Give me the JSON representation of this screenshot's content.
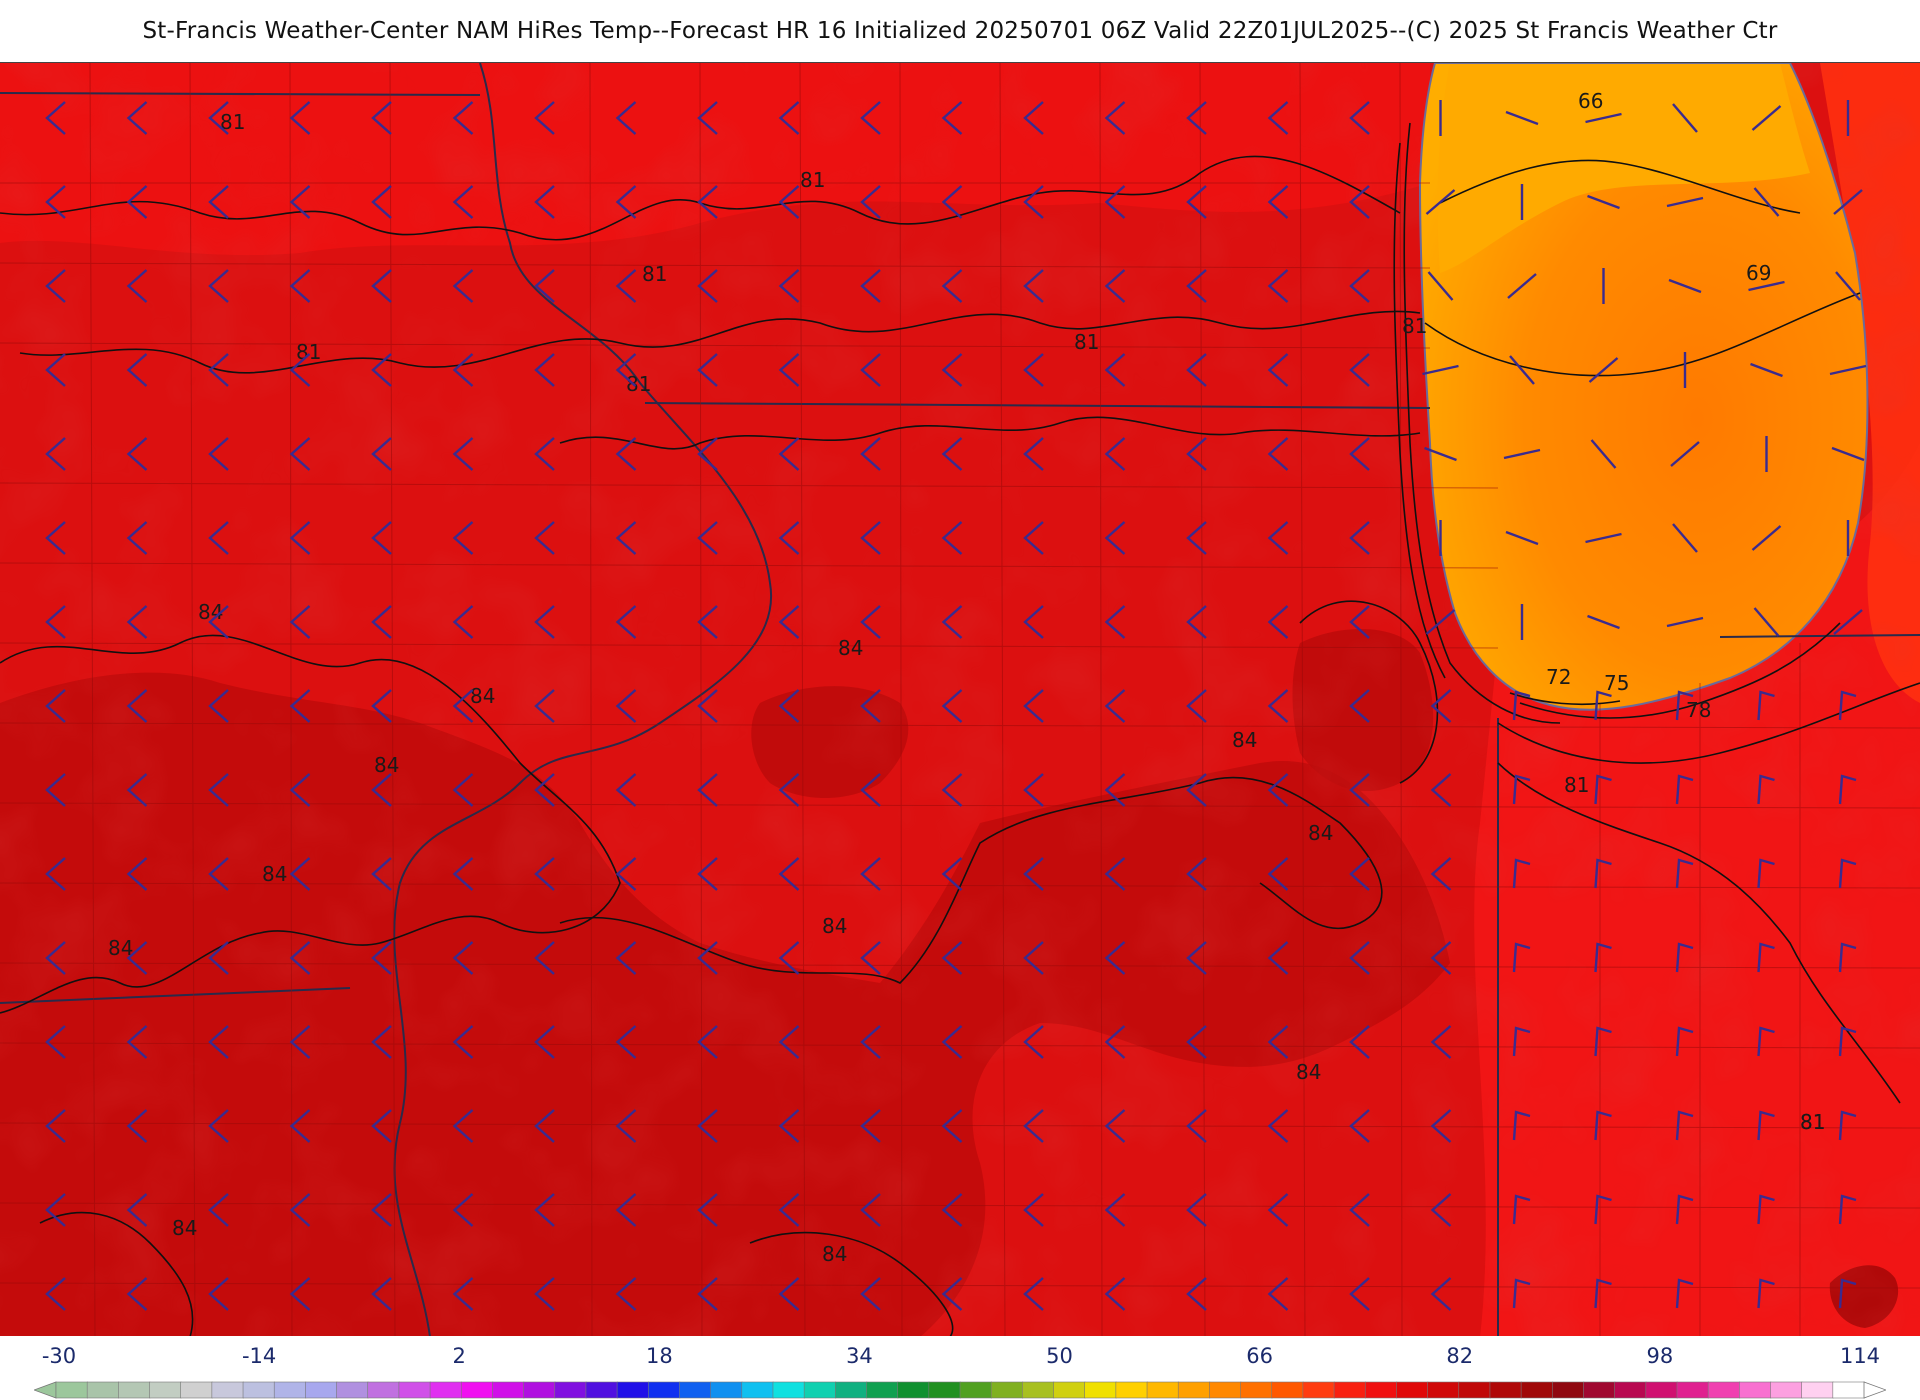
{
  "title": "St-Francis Weather-Center NAM HiRes Temp--Forecast HR 16 Initialized 20250701 06Z Valid 22Z01JUL2025--(C) 2025 St Francis Weather Ctr",
  "map": {
    "field": "2m temperature (°F) with 10m wind barbs",
    "contour_labels": [
      "81",
      "81",
      "81",
      "81",
      "81",
      "81",
      "81",
      "81",
      "84",
      "84",
      "84",
      "84",
      "84",
      "84",
      "84",
      "84",
      "84",
      "84",
      "84",
      "84",
      "66",
      "69",
      "72",
      "75",
      "78",
      "81",
      "81"
    ],
    "colors": {
      "dark_red": "#b80d0d",
      "mid_red": "#d40f0f",
      "bright_red": "#f01414",
      "orange_red": "#ff3a10",
      "orange": "#ff7a00",
      "amber": "#ffad00",
      "barb_color": "#3a2b8f",
      "contour_color": "#111111",
      "border_color": "#2a2a4a"
    }
  },
  "legend": {
    "tick_labels": [
      "-30",
      "-14",
      "2",
      "18",
      "34",
      "50",
      "66",
      "82",
      "98",
      "114"
    ],
    "range": [
      -30,
      114
    ],
    "colors": [
      "#9cc79c",
      "#a9c4a9",
      "#b4c7b4",
      "#c2cdc2",
      "#d0d0d0",
      "#c8c8dc",
      "#bcc0e0",
      "#b0b4e8",
      "#a8a8ee",
      "#b090e0",
      "#c070e0",
      "#d050e8",
      "#e030f0",
      "#f010f0",
      "#d010e8",
      "#b010e0",
      "#8010e0",
      "#5010e0",
      "#2010e8",
      "#1030f0",
      "#1060f0",
      "#1090f0",
      "#10c0f0",
      "#10e0e0",
      "#10d0b0",
      "#10b080",
      "#10a050",
      "#109030",
      "#209020",
      "#50a020",
      "#80b020",
      "#a8c020",
      "#d0d010",
      "#f0e000",
      "#ffd000",
      "#ffb800",
      "#ffa000",
      "#ff8800",
      "#ff7000",
      "#ff5800",
      "#ff3c10",
      "#f82010",
      "#f01010",
      "#e00808",
      "#d00808",
      "#c00808",
      "#b00808",
      "#a00808",
      "#900810",
      "#a00830",
      "#b80850",
      "#d01070",
      "#e02090",
      "#f040b0",
      "#f870d0",
      "#fca0e0",
      "#ffd0f0",
      "#ffffff"
    ]
  }
}
